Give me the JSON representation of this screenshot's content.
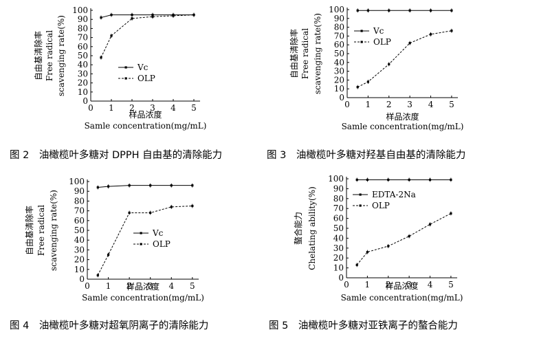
{
  "chart_data": [
    {
      "type": "line",
      "caption": "图 2　油橄榄叶多糖对 DPPH 自由基的清除能力",
      "ylabel_cn": "自由基清除率",
      "ylabel_en_1": "Free radical",
      "ylabel_en_2": "scavenging rate(%)",
      "xlabel_cn": "样品浓度",
      "xlabel_en": "Samle concentration(mg/mL)",
      "xlim": [
        0,
        5.3
      ],
      "ylim": [
        0,
        100
      ],
      "x_ticks": [
        "0",
        "1",
        "2",
        "3",
        "4",
        "5"
      ],
      "y_ticks": [
        "0",
        "10",
        "20",
        "30",
        "40",
        "50",
        "60",
        "70",
        "80",
        "90",
        "100"
      ],
      "legend_position": "middle-left",
      "series": [
        {
          "name": "Vc",
          "style": "solid",
          "x": [
            0.5,
            1,
            2,
            3,
            4,
            5
          ],
          "y": [
            92,
            95,
            95,
            95,
            95,
            95
          ]
        },
        {
          "name": "OLP",
          "style": "dotted",
          "x": [
            0.5,
            1,
            2,
            3,
            4,
            5
          ],
          "y": [
            48,
            72,
            91,
            93,
            94,
            95
          ]
        }
      ]
    },
    {
      "type": "line",
      "caption": "图 3　油橄榄叶多糖对羟基自由基的清除能力",
      "ylabel_cn": "自由基清除率",
      "ylabel_en_1": "Free radical",
      "ylabel_en_2": "scavenging rate(%)",
      "xlabel_cn": "样品浓度",
      "xlabel_en": "Samle concentration(mg/mL)",
      "xlim": [
        0,
        5.3
      ],
      "ylim": [
        0,
        100
      ],
      "x_ticks": [
        "0",
        "1",
        "2",
        "3",
        "4",
        "5"
      ],
      "y_ticks": [
        "0",
        "10",
        "20",
        "30",
        "40",
        "50",
        "60",
        "70",
        "80",
        "90",
        "100"
      ],
      "legend_position": "top-left",
      "series": [
        {
          "name": "Vc",
          "style": "solid",
          "x": [
            0.5,
            1,
            2,
            3,
            4,
            5
          ],
          "y": [
            99,
            99,
            99,
            99,
            99,
            99
          ]
        },
        {
          "name": "OLP",
          "style": "dotted",
          "x": [
            0.5,
            1,
            2,
            3,
            4,
            5
          ],
          "y": [
            12,
            18,
            38,
            62,
            72,
            76
          ]
        }
      ]
    },
    {
      "type": "line",
      "caption": "图 4　油橄榄叶多糖对超氧阴离子的清除能力",
      "ylabel_cn": "自由基清除率",
      "ylabel_en_1": "Free radical",
      "ylabel_en_2": "scavenging rate(%)",
      "xlabel_cn": "样品浓度",
      "xlabel_en": "Samle concentration(mg/mL)",
      "xlim": [
        0,
        5.3
      ],
      "ylim": [
        0,
        100
      ],
      "x_ticks": [
        "0",
        "1",
        "2",
        "3",
        "4",
        "5"
      ],
      "y_ticks": [
        "0",
        "10",
        "20",
        "30",
        "40",
        "50",
        "60",
        "70",
        "80",
        "90",
        "100"
      ],
      "legend_position": "middle-center",
      "series": [
        {
          "name": "Vc",
          "style": "solid",
          "x": [
            0.5,
            1,
            2,
            3,
            4,
            5
          ],
          "y": [
            94,
            95,
            96,
            96,
            96,
            96
          ]
        },
        {
          "name": "OLP",
          "style": "dotted",
          "x": [
            0.5,
            1,
            2,
            3,
            4,
            5
          ],
          "y": [
            4,
            25,
            68,
            68,
            74,
            75
          ]
        }
      ]
    },
    {
      "type": "line",
      "caption": "图 5　油橄榄叶多糖对亚铁离子的螯合能力",
      "ylabel_cn": "螯合能力",
      "ylabel_en_1": "Chelating ability(%)",
      "ylabel_en_2": "",
      "xlabel_cn": "样品浓度",
      "xlabel_en": "Samle concentration(mg/mL)",
      "xlim": [
        0,
        5.3
      ],
      "ylim": [
        0,
        100
      ],
      "x_ticks": [
        "0",
        "1",
        "2",
        "3",
        "4",
        "5"
      ],
      "y_ticks": [
        "0",
        "10",
        "20",
        "30",
        "40",
        "50",
        "60",
        "70",
        "80",
        "90",
        "100"
      ],
      "legend_position": "top-left",
      "series": [
        {
          "name": "EDTA-2Na",
          "style": "solid",
          "x": [
            0.5,
            1,
            2,
            3,
            4,
            5
          ],
          "y": [
            99,
            99,
            99,
            99,
            99,
            99
          ]
        },
        {
          "name": "OLP",
          "style": "dotted",
          "x": [
            0.5,
            1,
            2,
            3,
            4,
            5
          ],
          "y": [
            13,
            26,
            32,
            42,
            54,
            65
          ]
        }
      ]
    }
  ]
}
